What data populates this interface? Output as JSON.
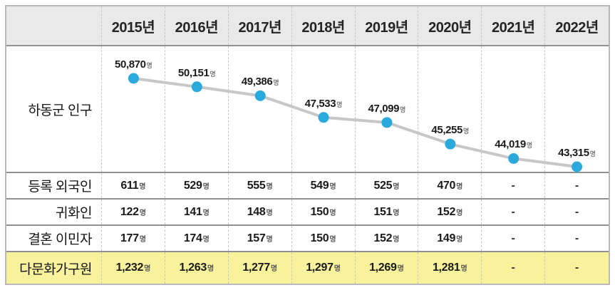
{
  "colors": {
    "accent_point": "#2aa9dc",
    "chart_line": "#c7c7c7",
    "highlight_row_bg": "#f7f29b",
    "header_bg": "#e9e9e9",
    "separator": "#909093",
    "dashed_divider": "#c6c6c6"
  },
  "unit_suffix": "명",
  "empty_value": "-",
  "header": {
    "corner_label": "",
    "years": [
      "2015년",
      "2016년",
      "2017년",
      "2018년",
      "2019년",
      "2020년",
      "2021년",
      "2022년"
    ]
  },
  "chart_data": {
    "type": "line",
    "title": "하동군 인구",
    "row_label": "하동군 인구",
    "categories": [
      "2015년",
      "2016년",
      "2017년",
      "2018년",
      "2019년",
      "2020년",
      "2021년",
      "2022년"
    ],
    "values": [
      50870,
      50151,
      49386,
      47533,
      47099,
      45255,
      44019,
      43315
    ],
    "labels": [
      "50,870",
      "50,151",
      "49,386",
      "47,533",
      "47,099",
      "45,255",
      "44,019",
      "43,315"
    ],
    "unit_suffix": "명",
    "ylim": [
      43315,
      50870
    ],
    "grid": "dashed-vertical",
    "legend": "none",
    "line_color": "#c7c7c7",
    "point_color": "#2aa9dc"
  },
  "rows": [
    {
      "label": "등록 외국인",
      "highlight": false,
      "values": [
        "611",
        "529",
        "555",
        "549",
        "525",
        "470",
        "-",
        "-"
      ]
    },
    {
      "label": "귀화인",
      "highlight": false,
      "values": [
        "122",
        "141",
        "148",
        "150",
        "151",
        "152",
        "-",
        "-"
      ]
    },
    {
      "label": "결혼 이민자",
      "highlight": false,
      "values": [
        "177",
        "174",
        "157",
        "150",
        "152",
        "149",
        "-",
        "-"
      ]
    },
    {
      "label": "다문화가구원",
      "highlight": true,
      "values": [
        "1,232",
        "1,263",
        "1,277",
        "1,297",
        "1,269",
        "1,281",
        "-",
        "-"
      ]
    }
  ]
}
